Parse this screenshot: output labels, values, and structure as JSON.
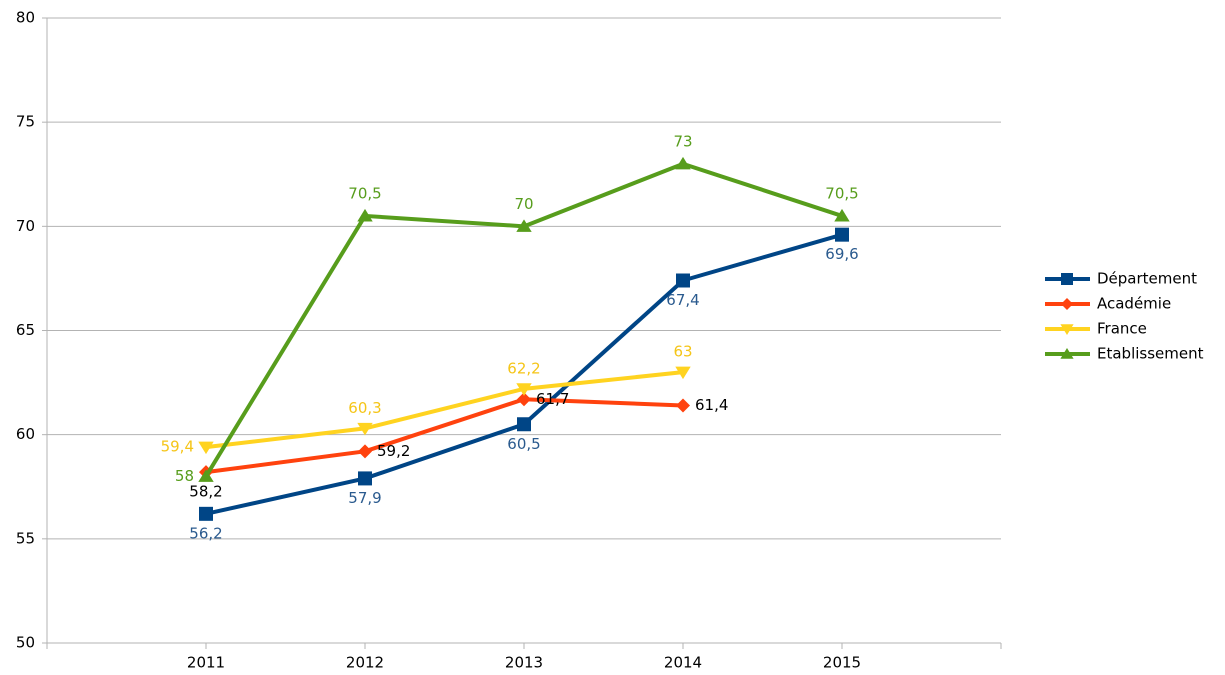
{
  "chart_data": {
    "type": "line",
    "categories": [
      "2011",
      "2012",
      "2013",
      "2014",
      "2015"
    ],
    "series": [
      {
        "name": "Département",
        "color": "#004586",
        "label_color": "#2a5a8e",
        "marker": "square",
        "values": [
          56.2,
          57.9,
          60.5,
          67.4,
          69.6
        ],
        "value_labels": [
          "56,2",
          "57,9",
          "60,5",
          "67,4",
          "69,6"
        ]
      },
      {
        "name": "Académie",
        "color": "#ff420e",
        "label_color": "#000000",
        "marker": "diamond",
        "values": [
          58.2,
          59.2,
          61.7,
          61.4,
          null
        ],
        "value_labels": [
          "58,2",
          "59,2",
          "61,7",
          "61,4",
          null
        ]
      },
      {
        "name": "France",
        "color": "#ffd320",
        "label_color": "#f5c518",
        "marker": "triangle-down",
        "values": [
          59.4,
          60.3,
          62.2,
          63,
          null
        ],
        "value_labels": [
          "59,4",
          "60,3",
          "62,2",
          "63",
          null
        ]
      },
      {
        "name": "Etablissement",
        "color": "#579d1c",
        "label_color": "#579d1c",
        "marker": "triangle-up",
        "values": [
          58,
          70.5,
          70,
          73,
          70.5
        ],
        "value_labels": [
          "58",
          "70,5",
          "70",
          "73",
          "70,5"
        ]
      }
    ],
    "ylim": [
      50,
      80
    ],
    "yticks": [
      50,
      55,
      60,
      65,
      70,
      75,
      80
    ],
    "grid": true,
    "legend": "right"
  }
}
